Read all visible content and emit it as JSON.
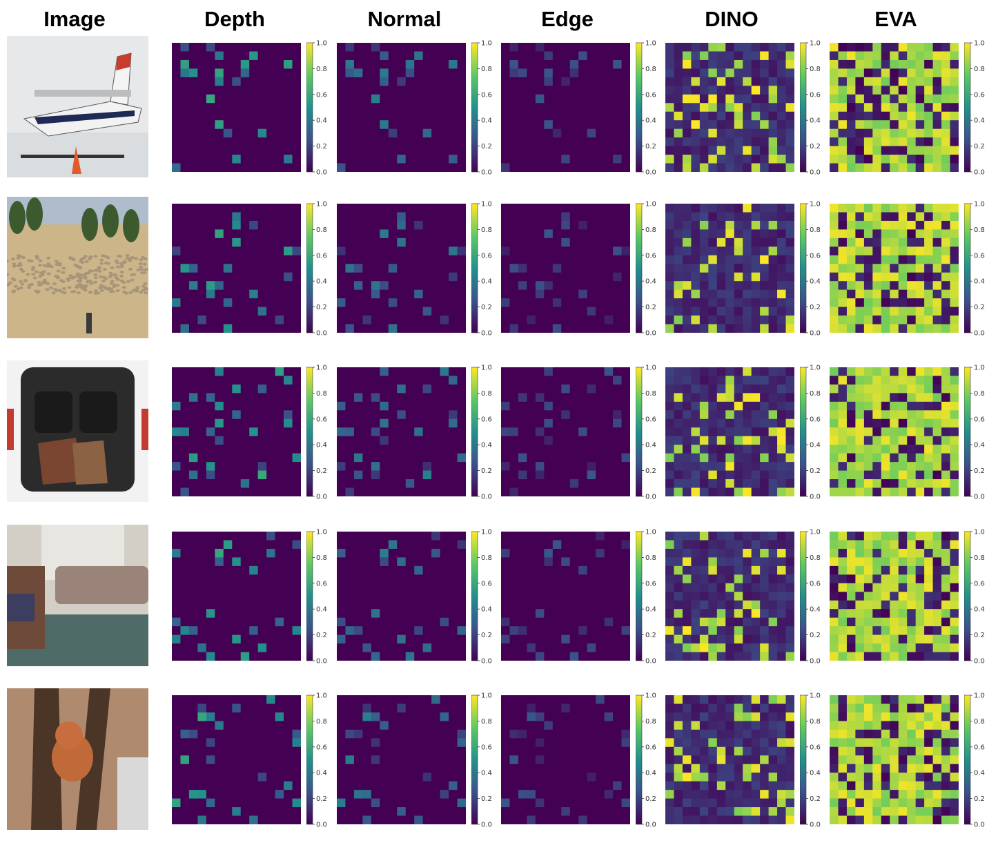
{
  "columns": [
    "Image",
    "Depth",
    "Normal",
    "Edge",
    "DINO",
    "EVA"
  ],
  "colorbar_ticks": [
    "0.0",
    "0.2",
    "0.4",
    "0.6",
    "0.8",
    "1.0"
  ],
  "colormap": [
    "#440154",
    "#3b528b",
    "#21918c",
    "#5ec962",
    "#fde725"
  ],
  "rows": [
    {
      "image_subject": "seaplane-on-snow"
    },
    {
      "image_subject": "sheep-flock-in-field"
    },
    {
      "image_subject": "car-trunk-with-bags"
    },
    {
      "image_subject": "living-room-couch"
    },
    {
      "image_subject": "teddy-bear-in-tree"
    }
  ],
  "heatmap_grid_size": 15
}
